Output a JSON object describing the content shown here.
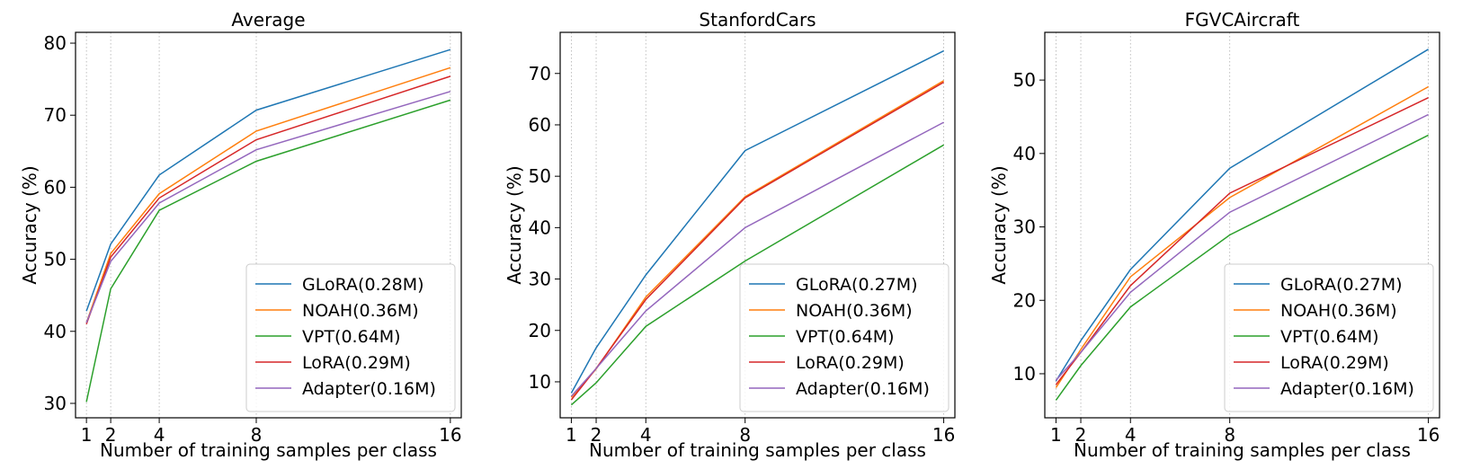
{
  "chart_data": [
    {
      "type": "line",
      "title": "Average",
      "xlabel": "Number of training samples per class",
      "ylabel": "Accuracy (%)",
      "x": [
        1,
        2,
        4,
        8,
        16
      ],
      "xticks": [
        "1",
        "2",
        "4",
        "8",
        "16"
      ],
      "ylim": [
        28,
        81.5
      ],
      "yticks": [
        30,
        40,
        50,
        60,
        70,
        80
      ],
      "grid": "vertical dotted",
      "legend": "bottom-right",
      "series": [
        {
          "name": "GLoRA(0.28M)",
          "color": "#1f77b4",
          "values": [
            42.8,
            52.1,
            61.7,
            70.7,
            79.1
          ]
        },
        {
          "name": "NOAH(0.36M)",
          "color": "#ff7f0e",
          "values": [
            41.2,
            50.8,
            59.1,
            67.8,
            76.6
          ]
        },
        {
          "name": "VPT(0.64M)",
          "color": "#2ca02c",
          "values": [
            30.2,
            45.9,
            56.8,
            63.6,
            72.1
          ]
        },
        {
          "name": "LoRA(0.29M)",
          "color": "#d62728",
          "values": [
            41.0,
            50.3,
            58.5,
            66.6,
            75.4
          ]
        },
        {
          "name": "Adapter(0.16M)",
          "color": "#9467bd",
          "values": [
            41.2,
            49.7,
            57.8,
            65.2,
            73.3
          ]
        }
      ]
    },
    {
      "type": "line",
      "title": "StanfordCars",
      "xlabel": "Number of training samples per class",
      "ylabel": "Accuracy (%)",
      "x": [
        1,
        2,
        4,
        8,
        16
      ],
      "xticks": [
        "1",
        "2",
        "4",
        "8",
        "16"
      ],
      "ylim": [
        3,
        78
      ],
      "yticks": [
        10,
        20,
        30,
        40,
        50,
        60,
        70
      ],
      "grid": "vertical dotted",
      "legend": "bottom-right",
      "series": [
        {
          "name": "GLoRA(0.27M)",
          "color": "#1f77b4",
          "values": [
            7.8,
            16.6,
            30.8,
            55.0,
            74.4
          ]
        },
        {
          "name": "NOAH(0.36M)",
          "color": "#ff7f0e",
          "values": [
            7.0,
            12.5,
            26.5,
            46.0,
            68.6
          ]
        },
        {
          "name": "VPT(0.64M)",
          "color": "#2ca02c",
          "values": [
            5.5,
            9.8,
            20.8,
            33.5,
            56.1
          ]
        },
        {
          "name": "LoRA(0.29M)",
          "color": "#d62728",
          "values": [
            6.5,
            12.6,
            26.0,
            45.8,
            68.3
          ]
        },
        {
          "name": "Adapter(0.16M)",
          "color": "#9467bd",
          "values": [
            7.2,
            12.6,
            23.8,
            40.0,
            60.5
          ]
        }
      ]
    },
    {
      "type": "line",
      "title": "FGVCAircraft",
      "xlabel": "Number of training samples per class",
      "ylabel": "Accuracy (%)",
      "x": [
        1,
        2,
        4,
        8,
        16
      ],
      "xticks": [
        "1",
        "2",
        "4",
        "8",
        "16"
      ],
      "ylim": [
        4,
        56.5
      ],
      "yticks": [
        10,
        20,
        30,
        40,
        50
      ],
      "grid": "vertical dotted",
      "legend": "bottom-right",
      "series": [
        {
          "name": "GLoRA(0.27M)",
          "color": "#1f77b4",
          "values": [
            9.0,
            14.5,
            24.2,
            38.0,
            54.2
          ]
        },
        {
          "name": "NOAH(0.36M)",
          "color": "#ff7f0e",
          "values": [
            8.1,
            13.3,
            23.2,
            34.0,
            49.1
          ]
        },
        {
          "name": "VPT(0.64M)",
          "color": "#2ca02c",
          "values": [
            6.4,
            11.1,
            19.1,
            28.9,
            42.5
          ]
        },
        {
          "name": "LoRA(0.29M)",
          "color": "#d62728",
          "values": [
            8.5,
            12.9,
            22.0,
            34.6,
            47.6
          ]
        },
        {
          "name": "Adapter(0.16M)",
          "color": "#9467bd",
          "values": [
            9.1,
            12.9,
            21.1,
            32.0,
            45.3
          ]
        }
      ]
    }
  ]
}
